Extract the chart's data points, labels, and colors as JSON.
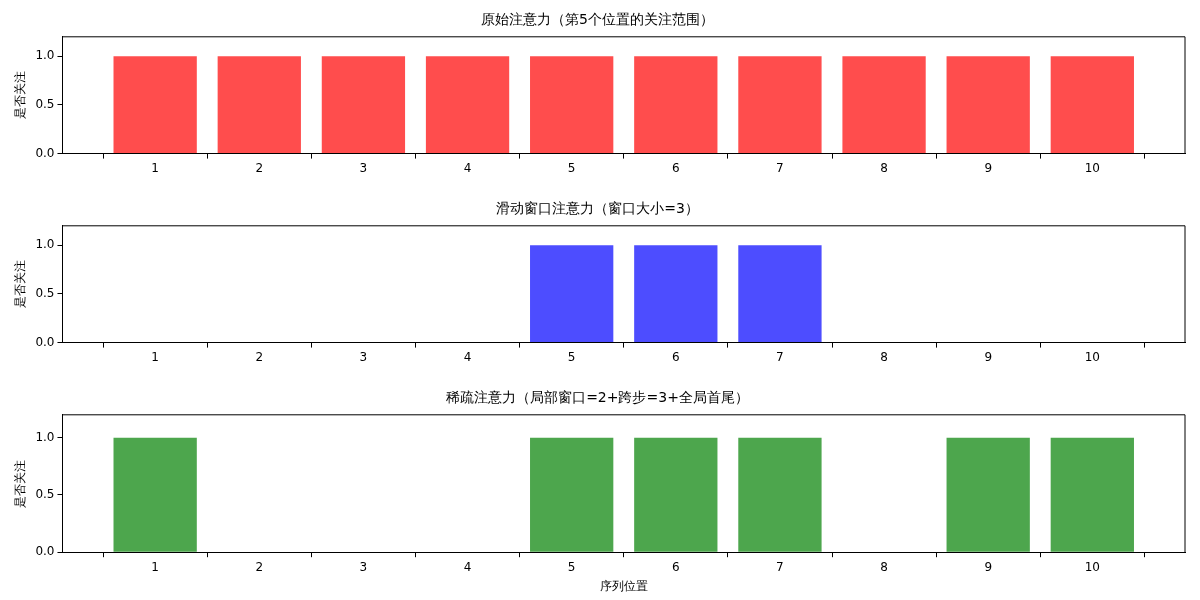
{
  "chart_data": [
    {
      "type": "bar",
      "title": "原始注意力（第5个位置的关注范围）",
      "ylabel": "是否关注",
      "x": [
        1,
        2,
        3,
        4,
        5,
        6,
        7,
        8,
        9,
        10
      ],
      "values": [
        1,
        1,
        1,
        1,
        1,
        1,
        1,
        1,
        1,
        1
      ],
      "color": "#ff4d4d",
      "xlim": [
        0.11,
        10.89
      ],
      "xticks": [
        1,
        2,
        3,
        4,
        5,
        6,
        7,
        8,
        9,
        10
      ],
      "ylim": [
        0,
        1.2
      ],
      "yticks": [
        {
          "value": 0,
          "label": "0.0"
        },
        {
          "value": 0.5,
          "label": "0.5"
        },
        {
          "value": 1,
          "label": "1.0"
        }
      ],
      "grid": false,
      "legend": false
    },
    {
      "type": "bar",
      "title": "滑动窗口注意力（窗口大小=3）",
      "ylabel": "是否关注",
      "x": [
        1,
        2,
        3,
        4,
        5,
        6,
        7,
        8,
        9,
        10
      ],
      "values": [
        0,
        0,
        0,
        0,
        1,
        1,
        1,
        0,
        0,
        0
      ],
      "color": "#4d4dff",
      "xlim": [
        0.11,
        10.89
      ],
      "xticks": [
        1,
        2,
        3,
        4,
        5,
        6,
        7,
        8,
        9,
        10
      ],
      "ylim": [
        0,
        1.2
      ],
      "yticks": [
        {
          "value": 0,
          "label": "0.0"
        },
        {
          "value": 0.5,
          "label": "0.5"
        },
        {
          "value": 1,
          "label": "1.0"
        }
      ],
      "grid": false,
      "legend": false
    },
    {
      "type": "bar",
      "title": "稀疏注意力（局部窗口=2+跨步=3+全局首尾）",
      "xlabel": "序列位置",
      "ylabel": "是否关注",
      "x": [
        1,
        2,
        3,
        4,
        5,
        6,
        7,
        8,
        9,
        10
      ],
      "values": [
        1,
        0,
        0,
        0,
        1,
        1,
        1,
        0,
        1,
        1
      ],
      "color": "#4da64d",
      "xlim": [
        0.11,
        10.89
      ],
      "xticks": [
        1,
        2,
        3,
        4,
        5,
        6,
        7,
        8,
        9,
        10
      ],
      "ylim": [
        0,
        1.2
      ],
      "yticks": [
        {
          "value": 0,
          "label": "0.0"
        },
        {
          "value": 0.5,
          "label": "0.5"
        },
        {
          "value": 1,
          "label": "1.0"
        }
      ],
      "grid": false,
      "legend": false
    }
  ]
}
